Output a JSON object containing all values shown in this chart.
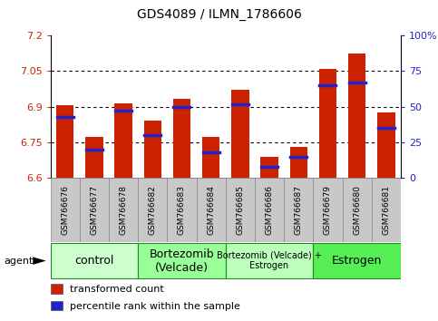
{
  "title": "GDS4089 / ILMN_1786606",
  "samples": [
    "GSM766676",
    "GSM766677",
    "GSM766678",
    "GSM766682",
    "GSM766683",
    "GSM766684",
    "GSM766685",
    "GSM766686",
    "GSM766687",
    "GSM766679",
    "GSM766680",
    "GSM766681"
  ],
  "transformed_counts": [
    6.905,
    6.775,
    6.915,
    6.84,
    6.935,
    6.775,
    6.97,
    6.69,
    6.73,
    7.06,
    7.125,
    6.875
  ],
  "percentile_ranks": [
    43,
    20,
    47,
    30,
    50,
    18,
    52,
    8,
    15,
    65,
    67,
    35
  ],
  "y_min": 6.6,
  "y_max": 7.2,
  "y_ticks": [
    6.6,
    6.75,
    6.9,
    7.05,
    7.2
  ],
  "y_tick_labels": [
    "6.6",
    "6.75",
    "6.9",
    "7.05",
    "7.2"
  ],
  "right_y_ticks": [
    0,
    25,
    50,
    75,
    100
  ],
  "right_y_labels": [
    "0",
    "25",
    "50",
    "75",
    "100%"
  ],
  "groups": [
    {
      "label": "control",
      "start": 0,
      "end": 3,
      "color": "#ccffcc",
      "font_size": 9
    },
    {
      "label": "Bortezomib\n(Velcade)",
      "start": 3,
      "end": 6,
      "color": "#99ff99",
      "font_size": 9
    },
    {
      "label": "Bortezomib (Velcade) +\nEstrogen",
      "start": 6,
      "end": 9,
      "color": "#bbffbb",
      "font_size": 7
    },
    {
      "label": "Estrogen",
      "start": 9,
      "end": 12,
      "color": "#55ee55",
      "font_size": 9
    }
  ],
  "bar_color": "#cc2200",
  "blue_color": "#2222cc",
  "bg_color": "#ffffff",
  "tick_bg_color": "#c8c8c8",
  "grid_color": "#000000",
  "agent_label": "agent",
  "legend_items": [
    {
      "color": "#cc2200",
      "label": "transformed count"
    },
    {
      "color": "#2222cc",
      "label": "percentile rank within the sample"
    }
  ],
  "bar_width": 0.6
}
